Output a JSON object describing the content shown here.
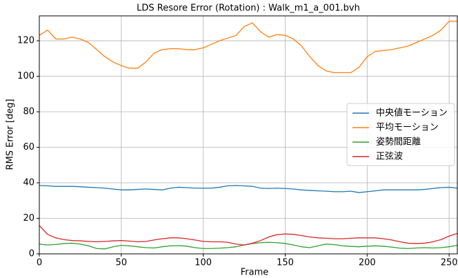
{
  "chart_data": {
    "type": "line",
    "title": "LDS Resore Error (Rotation) : Walk_m1_a_001.bvh",
    "xlabel": "Frame",
    "ylabel": "RMS Error [deg]",
    "x": [
      0,
      5,
      10,
      15,
      20,
      25,
      30,
      35,
      40,
      45,
      50,
      55,
      60,
      65,
      70,
      75,
      80,
      85,
      90,
      95,
      100,
      105,
      110,
      115,
      120,
      125,
      130,
      135,
      140,
      145,
      150,
      155,
      160,
      165,
      170,
      175,
      180,
      185,
      190,
      195,
      200,
      205,
      210,
      215,
      220,
      225,
      230,
      235,
      240,
      245,
      250,
      255
    ],
    "series": [
      {
        "name": "中央値モーション",
        "color": "#1f77b4",
        "values": [
          38.5,
          38.3,
          38,
          38,
          38,
          37.8,
          37.5,
          37.3,
          37,
          36.5,
          36,
          36,
          36.3,
          36.5,
          36.3,
          36,
          37,
          37.5,
          37.3,
          37,
          37,
          37,
          37.5,
          38.3,
          38.5,
          38.3,
          38,
          37,
          36.8,
          37,
          36.8,
          36.5,
          36,
          35.7,
          35.5,
          35.3,
          35,
          35,
          35.3,
          34.5,
          35,
          35.5,
          36,
          36,
          36,
          36,
          36,
          36.3,
          36.8,
          37.3,
          37.5,
          37
        ]
      },
      {
        "name": "平均モーション",
        "color": "#ff7f0e",
        "values": [
          123,
          126,
          121,
          121,
          122,
          121,
          119,
          115,
          111,
          108,
          106,
          104.5,
          104.5,
          108,
          113,
          115,
          115.5,
          115.5,
          115,
          115,
          116,
          118,
          120,
          121.5,
          123,
          128,
          130,
          125,
          122,
          123.5,
          123,
          121,
          117,
          111,
          106,
          103,
          102,
          102,
          102,
          105,
          111,
          114,
          114.5,
          115,
          116,
          117,
          119,
          121,
          123,
          126,
          131,
          131
        ]
      },
      {
        "name": "姿勢間距離",
        "color": "#2ca02c",
        "values": [
          5.5,
          5,
          5.3,
          5.8,
          6,
          5.5,
          4.5,
          3,
          2.8,
          4,
          4.8,
          4.5,
          4,
          3.5,
          3.3,
          4,
          4.5,
          4.6,
          4.3,
          3.5,
          3,
          3,
          3.2,
          3.5,
          4,
          5,
          5.8,
          6.3,
          6.5,
          6.3,
          5.8,
          5,
          4,
          3.5,
          4.5,
          5.5,
          5.2,
          4.5,
          4.2,
          4,
          4.3,
          4.5,
          4.3,
          3.8,
          3.2,
          3,
          3.3,
          3.5,
          3.3,
          3.5,
          4,
          4.8
        ]
      },
      {
        "name": "正弦波",
        "color": "#d62728",
        "values": [
          16,
          11,
          9,
          8,
          7.5,
          7.3,
          7,
          6.8,
          7,
          7.3,
          7.5,
          7.2,
          6.8,
          7,
          7.8,
          8.5,
          9,
          9,
          8.5,
          7.8,
          7,
          6.8,
          6.8,
          6.5,
          5.5,
          5,
          6,
          7.5,
          9.5,
          10.8,
          11.2,
          11,
          10.3,
          9.5,
          9,
          8.8,
          8.5,
          8.5,
          8.8,
          9,
          9,
          9,
          8.5,
          7.8,
          6.8,
          6,
          5.8,
          6,
          6.8,
          8,
          10,
          11.5
        ]
      }
    ],
    "xlim": [
      0,
      255
    ],
    "ylim": [
      0,
      134
    ],
    "xticks": [
      0,
      50,
      100,
      150,
      200,
      250
    ],
    "yticks": [
      0,
      20,
      40,
      60,
      80,
      100,
      120
    ],
    "grid": true,
    "legend": "right"
  }
}
